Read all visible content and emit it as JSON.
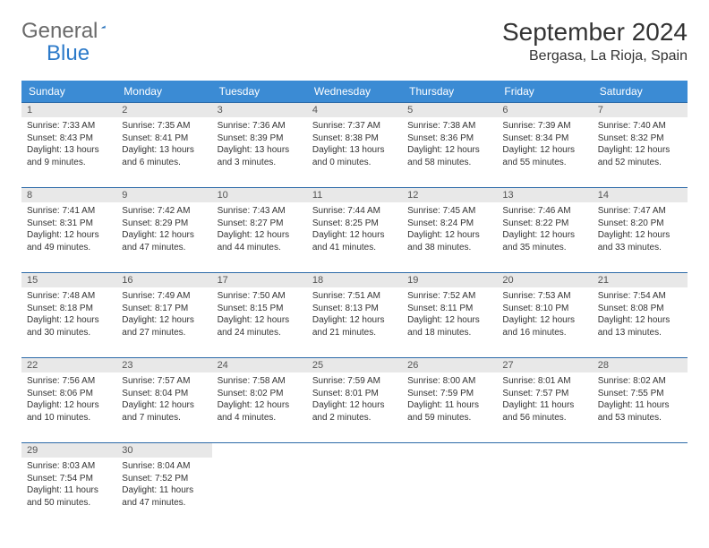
{
  "logo": {
    "text1": "General",
    "text2": "Blue"
  },
  "title": "September 2024",
  "subtitle": "Bergasa, La Rioja, Spain",
  "colors": {
    "header_bg": "#3b8bd4",
    "header_text": "#ffffff",
    "row_border": "#2c6aa8",
    "daynum_bg": "#e8e8e8",
    "body_text": "#333333",
    "logo_gray": "#6a6a6a",
    "logo_blue": "#2c7ac9"
  },
  "weekdays": [
    "Sunday",
    "Monday",
    "Tuesday",
    "Wednesday",
    "Thursday",
    "Friday",
    "Saturday"
  ],
  "days": [
    {
      "n": 1,
      "sunrise": "7:33 AM",
      "sunset": "8:43 PM",
      "daylight": "13 hours and 9 minutes."
    },
    {
      "n": 2,
      "sunrise": "7:35 AM",
      "sunset": "8:41 PM",
      "daylight": "13 hours and 6 minutes."
    },
    {
      "n": 3,
      "sunrise": "7:36 AM",
      "sunset": "8:39 PM",
      "daylight": "13 hours and 3 minutes."
    },
    {
      "n": 4,
      "sunrise": "7:37 AM",
      "sunset": "8:38 PM",
      "daylight": "13 hours and 0 minutes."
    },
    {
      "n": 5,
      "sunrise": "7:38 AM",
      "sunset": "8:36 PM",
      "daylight": "12 hours and 58 minutes."
    },
    {
      "n": 6,
      "sunrise": "7:39 AM",
      "sunset": "8:34 PM",
      "daylight": "12 hours and 55 minutes."
    },
    {
      "n": 7,
      "sunrise": "7:40 AM",
      "sunset": "8:32 PM",
      "daylight": "12 hours and 52 minutes."
    },
    {
      "n": 8,
      "sunrise": "7:41 AM",
      "sunset": "8:31 PM",
      "daylight": "12 hours and 49 minutes."
    },
    {
      "n": 9,
      "sunrise": "7:42 AM",
      "sunset": "8:29 PM",
      "daylight": "12 hours and 47 minutes."
    },
    {
      "n": 10,
      "sunrise": "7:43 AM",
      "sunset": "8:27 PM",
      "daylight": "12 hours and 44 minutes."
    },
    {
      "n": 11,
      "sunrise": "7:44 AM",
      "sunset": "8:25 PM",
      "daylight": "12 hours and 41 minutes."
    },
    {
      "n": 12,
      "sunrise": "7:45 AM",
      "sunset": "8:24 PM",
      "daylight": "12 hours and 38 minutes."
    },
    {
      "n": 13,
      "sunrise": "7:46 AM",
      "sunset": "8:22 PM",
      "daylight": "12 hours and 35 minutes."
    },
    {
      "n": 14,
      "sunrise": "7:47 AM",
      "sunset": "8:20 PM",
      "daylight": "12 hours and 33 minutes."
    },
    {
      "n": 15,
      "sunrise": "7:48 AM",
      "sunset": "8:18 PM",
      "daylight": "12 hours and 30 minutes."
    },
    {
      "n": 16,
      "sunrise": "7:49 AM",
      "sunset": "8:17 PM",
      "daylight": "12 hours and 27 minutes."
    },
    {
      "n": 17,
      "sunrise": "7:50 AM",
      "sunset": "8:15 PM",
      "daylight": "12 hours and 24 minutes."
    },
    {
      "n": 18,
      "sunrise": "7:51 AM",
      "sunset": "8:13 PM",
      "daylight": "12 hours and 21 minutes."
    },
    {
      "n": 19,
      "sunrise": "7:52 AM",
      "sunset": "8:11 PM",
      "daylight": "12 hours and 18 minutes."
    },
    {
      "n": 20,
      "sunrise": "7:53 AM",
      "sunset": "8:10 PM",
      "daylight": "12 hours and 16 minutes."
    },
    {
      "n": 21,
      "sunrise": "7:54 AM",
      "sunset": "8:08 PM",
      "daylight": "12 hours and 13 minutes."
    },
    {
      "n": 22,
      "sunrise": "7:56 AM",
      "sunset": "8:06 PM",
      "daylight": "12 hours and 10 minutes."
    },
    {
      "n": 23,
      "sunrise": "7:57 AM",
      "sunset": "8:04 PM",
      "daylight": "12 hours and 7 minutes."
    },
    {
      "n": 24,
      "sunrise": "7:58 AM",
      "sunset": "8:02 PM",
      "daylight": "12 hours and 4 minutes."
    },
    {
      "n": 25,
      "sunrise": "7:59 AM",
      "sunset": "8:01 PM",
      "daylight": "12 hours and 2 minutes."
    },
    {
      "n": 26,
      "sunrise": "8:00 AM",
      "sunset": "7:59 PM",
      "daylight": "11 hours and 59 minutes."
    },
    {
      "n": 27,
      "sunrise": "8:01 AM",
      "sunset": "7:57 PM",
      "daylight": "11 hours and 56 minutes."
    },
    {
      "n": 28,
      "sunrise": "8:02 AM",
      "sunset": "7:55 PM",
      "daylight": "11 hours and 53 minutes."
    },
    {
      "n": 29,
      "sunrise": "8:03 AM",
      "sunset": "7:54 PM",
      "daylight": "11 hours and 50 minutes."
    },
    {
      "n": 30,
      "sunrise": "8:04 AM",
      "sunset": "7:52 PM",
      "daylight": "11 hours and 47 minutes."
    }
  ],
  "labels": {
    "sunrise": "Sunrise:",
    "sunset": "Sunset:",
    "daylight": "Daylight:"
  },
  "layout": {
    "start_weekday": 0,
    "cols": 7
  }
}
